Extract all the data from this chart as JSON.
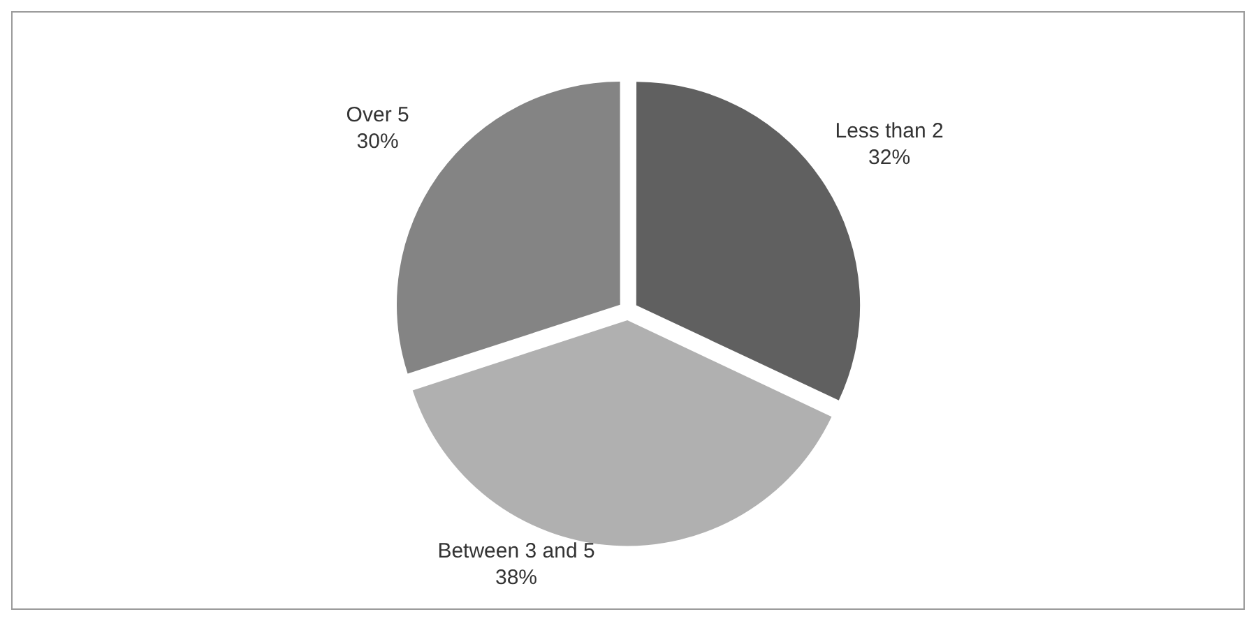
{
  "chart_data": {
    "type": "pie",
    "categories": [
      "Less than 2",
      "Between 3 and 5",
      "Over 5"
    ],
    "values": [
      32,
      38,
      30
    ],
    "colors": [
      "#606060",
      "#b0b0b0",
      "#848484"
    ],
    "value_labels": [
      "32%",
      "38%",
      "30%"
    ],
    "legend": false
  }
}
